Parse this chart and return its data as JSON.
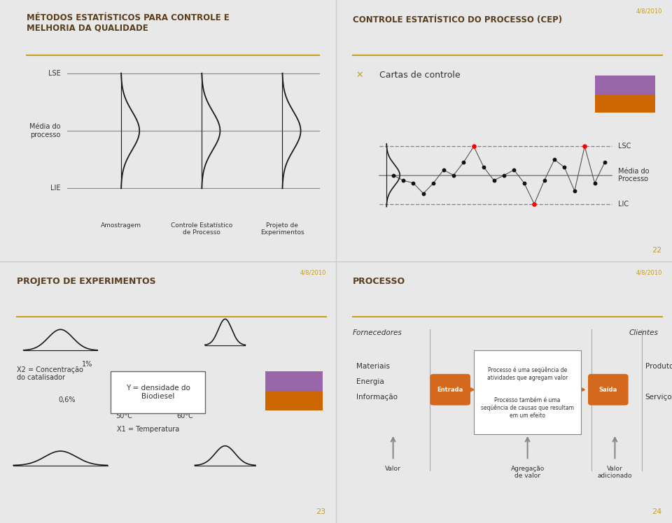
{
  "bg_color": "#f0f0f0",
  "panel_bg": "#f5f5f5",
  "title_color": "#5a3e1b",
  "gold_line_color": "#c8a020",
  "date_color": "#c8a020",
  "date_text": "4/8/2010",
  "panel1_title": "MÉTODOS ESTATÍSTICOS PARA CONTROLE E\nMELHORIA DA QUALIDADE",
  "panel1_labels_left": [
    "LSE",
    "Média do\nprocesso",
    "LIE"
  ],
  "panel1_bottom_labels": [
    "Amostragem",
    "Controle Estatístico\nde Processo",
    "Projeto de\nExperimentos"
  ],
  "panel2_title": "CONTROLE ESTATÍSTICO DO PROCESSO (CEP)",
  "panel2_bullet": "Cartas de controle",
  "panel2_right_labels": [
    "LSC",
    "Média do\nProcesso",
    "LIC"
  ],
  "panel2_page": "22",
  "panel3_title": "PROJETO DE EXPERIMENTOS",
  "panel3_label_x2": "X2 = Concentração\ndo catalisador",
  "panel3_label_06": "0,6%",
  "panel3_label_1pct": "1%",
  "panel3_box_text": "Y = densidade do\nBiodiesel",
  "panel3_temp_labels": [
    "50°C",
    "60°C"
  ],
  "panel3_x1_label": "X1 = Temperatura",
  "panel3_page": "23",
  "panel4_title": "PROCESSO",
  "panel4_fornecedores": "Fornecedores",
  "panel4_clientes": "Clientes",
  "panel4_inputs": [
    "Materiais",
    "Energia",
    "Informação"
  ],
  "panel4_entrada": "Entrada",
  "panel4_saida": "Saída",
  "panel4_process_text1": "Processo é uma seqüência de\natividades que agregam valor",
  "panel4_process_text2": "Processo também é uma\nseqüência de causas que resultam\nem um efeito",
  "panel4_valor": "Valor",
  "panel4_agregacao": "Agregação\nde valor",
  "panel4_valor_adicionado": "Valor\nadicionado",
  "panel4_produtos": "Produtos",
  "panel4_servicos": "Serviços",
  "panel4_page": "24"
}
